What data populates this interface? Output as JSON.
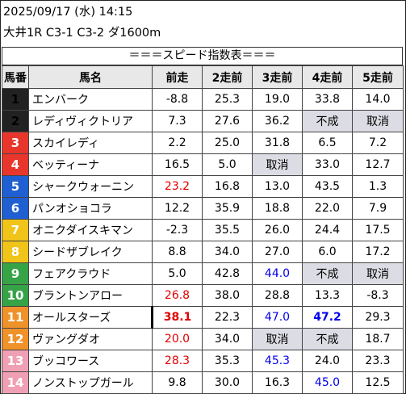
{
  "header": {
    "date_line": "2025/09/17 (水) 14:15",
    "race_line": "大井1R C3-1 C3-2 ダ1600m"
  },
  "title": "＝＝＝スピード指数表＝＝＝",
  "columns": [
    "馬番",
    "馬名",
    "前走",
    "2走前",
    "3走前",
    "4走前",
    "5走前"
  ],
  "colors": {
    "frame": [
      "#ffffff",
      "#222222",
      "#e8362c",
      "#1f5fd2",
      "#f0c419",
      "#37a347",
      "#f0922a",
      "#f0a0b4"
    ],
    "highlight_red": "#e00000",
    "highlight_blue": "#0000ee",
    "header_bg": "#e8e8e8",
    "missing_bg": "#dcdce4"
  },
  "rows": [
    {
      "no": "1",
      "frame": 1,
      "name": "エンバーク",
      "v": [
        "-8.8",
        "25.3",
        "19.0",
        "33.8",
        "14.0"
      ],
      "style": [
        "",
        "",
        "",
        "",
        ""
      ]
    },
    {
      "no": "2",
      "frame": 1,
      "name": "レディヴィクトリア",
      "v": [
        "7.3",
        "27.6",
        "36.2",
        "不成",
        "取消"
      ],
      "style": [
        "",
        "",
        "",
        "grey",
        "grey"
      ]
    },
    {
      "no": "3",
      "frame": 2,
      "name": "スカイレディ",
      "v": [
        "2.2",
        "25.0",
        "31.8",
        "6.5",
        "7.2"
      ],
      "style": [
        "",
        "",
        "",
        "",
        ""
      ]
    },
    {
      "no": "4",
      "frame": 2,
      "name": "ベッティーナ",
      "v": [
        "16.5",
        "5.0",
        "取消",
        "33.0",
        "12.7"
      ],
      "style": [
        "",
        "",
        "grey",
        "",
        ""
      ]
    },
    {
      "no": "5",
      "frame": 3,
      "name": "シャークウォーニン",
      "v": [
        "23.2",
        "16.8",
        "13.0",
        "43.5",
        "1.3"
      ],
      "style": [
        "red",
        "",
        "",
        "",
        ""
      ]
    },
    {
      "no": "6",
      "frame": 3,
      "name": "パンオショコラ",
      "v": [
        "12.2",
        "35.9",
        "18.8",
        "22.0",
        "7.9"
      ],
      "style": [
        "",
        "",
        "",
        "",
        ""
      ]
    },
    {
      "no": "7",
      "frame": 4,
      "name": "オニクダイスキマン",
      "v": [
        "-2.3",
        "35.5",
        "26.0",
        "24.4",
        "17.5"
      ],
      "style": [
        "",
        "",
        "",
        "",
        ""
      ]
    },
    {
      "no": "8",
      "frame": 4,
      "name": "シードザブレイク",
      "v": [
        "8.8",
        "34.0",
        "27.0",
        "6.0",
        "17.2"
      ],
      "style": [
        "",
        "",
        "",
        "",
        ""
      ]
    },
    {
      "no": "9",
      "frame": 5,
      "name": "フェアクラウド",
      "v": [
        "5.0",
        "42.8",
        "44.0",
        "不成",
        "取消"
      ],
      "style": [
        "",
        "",
        "blue",
        "grey",
        "grey"
      ]
    },
    {
      "no": "10",
      "frame": 5,
      "name": "ブラントンアロー",
      "v": [
        "26.8",
        "38.0",
        "28.8",
        "13.3",
        "-8.3"
      ],
      "style": [
        "red",
        "",
        "",
        "",
        ""
      ]
    },
    {
      "no": "11",
      "frame": 6,
      "name": "オールスターズ",
      "v": [
        "38.1",
        "22.3",
        "47.0",
        "47.2",
        "29.3"
      ],
      "style": [
        "red bold mark",
        "",
        "blue",
        "blue bold",
        ""
      ]
    },
    {
      "no": "12",
      "frame": 6,
      "name": "ヴァングダオ",
      "v": [
        "20.0",
        "34.0",
        "取消",
        "不成",
        "18.7"
      ],
      "style": [
        "red",
        "",
        "grey",
        "grey",
        ""
      ]
    },
    {
      "no": "13",
      "frame": 7,
      "name": "ブッコワース",
      "v": [
        "28.3",
        "35.3",
        "45.3",
        "24.0",
        "23.3"
      ],
      "style": [
        "red",
        "",
        "blue",
        "",
        ""
      ]
    },
    {
      "no": "14",
      "frame": 7,
      "name": "ノンストップガール",
      "v": [
        "9.8",
        "30.0",
        "16.3",
        "45.0",
        "12.5"
      ],
      "style": [
        "",
        "",
        "",
        "blue",
        ""
      ]
    }
  ]
}
